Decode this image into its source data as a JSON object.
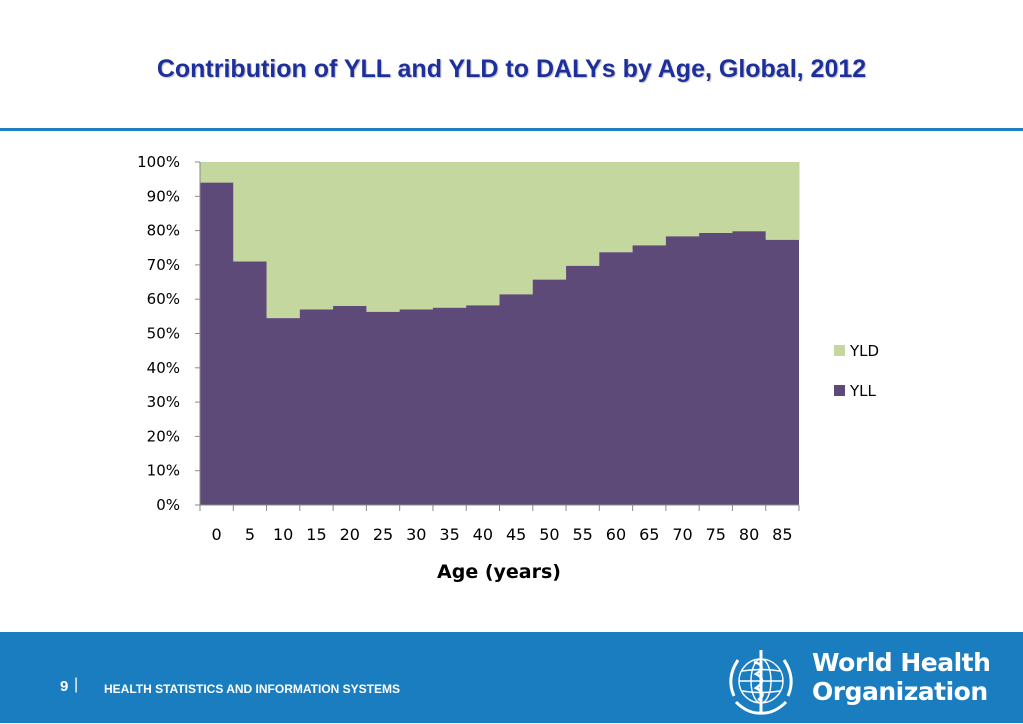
{
  "title": "Contribution of YLL and YLD to DALYs by Age, Global, 2012",
  "colors": {
    "yll": "#5e4a79",
    "yld": "#c4d79f",
    "title": "#1d2f9c",
    "footer": "#1a7dc0",
    "rule": "#1e7fc2"
  },
  "chart_data": {
    "type": "area",
    "title": "",
    "xlabel": "Age (years)",
    "ylabel": "",
    "stacked": "100%",
    "categories": [
      "0",
      "5",
      "10",
      "15",
      "20",
      "25",
      "30",
      "35",
      "40",
      "45",
      "50",
      "55",
      "60",
      "65",
      "70",
      "75",
      "80",
      "85"
    ],
    "ylim": [
      0,
      100
    ],
    "y_ticks": [
      "0%",
      "10%",
      "20%",
      "30%",
      "40%",
      "50%",
      "60%",
      "70%",
      "80%",
      "90%",
      "100%"
    ],
    "legend_position": "right",
    "series": [
      {
        "name": "YLD",
        "values": [
          6,
          29,
          45.5,
          43,
          42,
          43.7,
          43,
          42.5,
          41.8,
          38.6,
          34.3,
          30.3,
          26.3,
          24.3,
          21.7,
          20.7,
          20.2,
          22.7
        ]
      },
      {
        "name": "YLL",
        "values": [
          94,
          71,
          54.5,
          57,
          58,
          56.3,
          57,
          57.5,
          58.2,
          61.4,
          65.7,
          69.7,
          73.7,
          75.7,
          78.3,
          79.3,
          79.8,
          77.3
        ]
      }
    ]
  },
  "footer": {
    "page_number": "9",
    "separator": "|",
    "section": "HEALTH STATISTICS AND INFORMATION SYSTEMS",
    "org_line1": "World Health",
    "org_line2": "Organization"
  },
  "icons": {
    "logo": "who-emblem-icon"
  }
}
